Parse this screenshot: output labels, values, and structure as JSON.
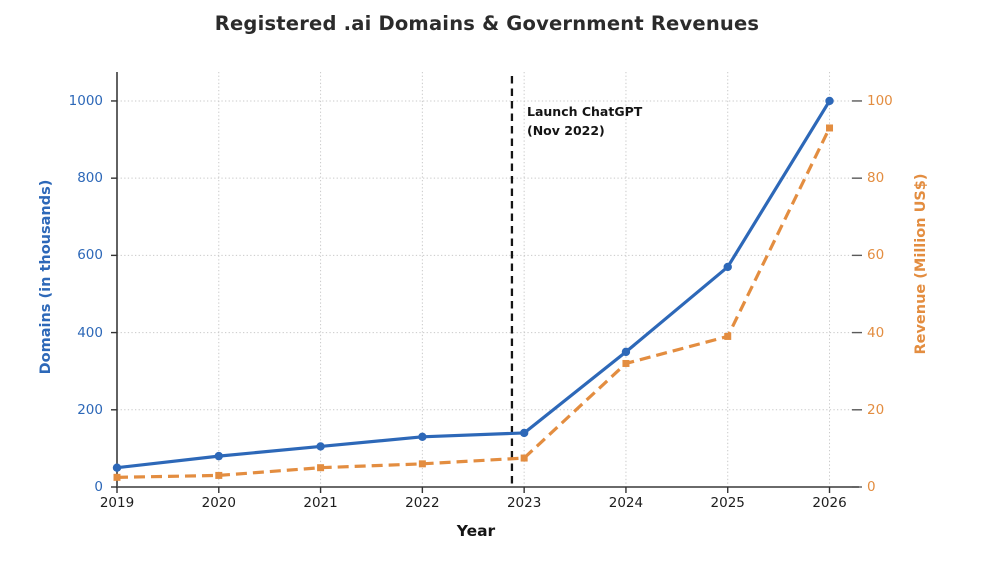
{
  "title": "Registered .ai Domains & Government Revenues",
  "chart_data": {
    "type": "line",
    "x": [
      2019,
      2020,
      2021,
      2022,
      2023,
      2024,
      2025,
      2026
    ],
    "series": [
      {
        "name": "Domains (in thousands)",
        "axis": "left",
        "style": "solid",
        "marker": "circle",
        "values": [
          50,
          80,
          105,
          130,
          140,
          350,
          570,
          1000
        ]
      },
      {
        "name": "Revenue (Million US$)",
        "axis": "right",
        "style": "dashed",
        "marker": "square",
        "values": [
          2.5,
          3,
          5,
          6,
          7.5,
          32,
          39,
          93
        ]
      }
    ],
    "xlabel": "Year",
    "ylabel_left": "Domains (in thousands)",
    "ylabel_right": "Revenue (Million US$)",
    "xticks": [
      2019,
      2020,
      2021,
      2022,
      2023,
      2024,
      2025,
      2026
    ],
    "yticks_left": [
      0,
      200,
      400,
      600,
      800,
      1000
    ],
    "yticks_right": [
      0,
      20,
      40,
      60,
      80,
      100
    ],
    "xlim": [
      2019,
      2026.27
    ],
    "ylim_left": [
      0,
      1075
    ],
    "ylim_right": [
      0,
      107.5
    ],
    "grid": true,
    "legend": "none",
    "annotation": {
      "line1": "Launch ChatGPT",
      "line2": "(Nov 2022)",
      "x": 2022.88
    },
    "colors": {
      "domains_blue": "#2d68b8",
      "revenue_orange": "#e38d40",
      "grid": "#c9c9c9",
      "vline": "#151515",
      "spine": "#3b3b3b",
      "title_text": "#2b2b2b"
    }
  }
}
